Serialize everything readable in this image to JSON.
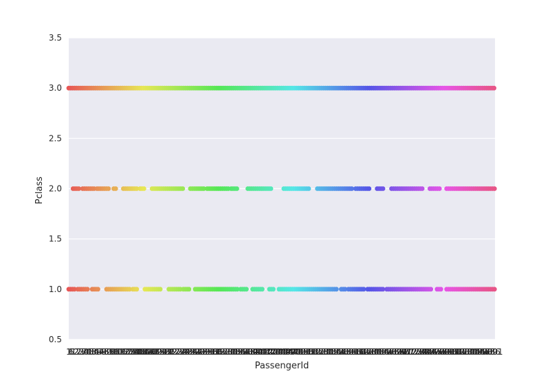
{
  "chart_data": {
    "type": "scatter",
    "title": "",
    "xlabel": "PassengerId",
    "ylabel": "Pclass",
    "ylim": [
      0.5,
      3.5
    ],
    "xlim": [
      1,
      891
    ],
    "yticks": [
      "0.5",
      "1.0",
      "1.5",
      "2.0",
      "2.5",
      "3.0",
      "3.5"
    ],
    "grid": true,
    "background": "#EAEAF2",
    "x_tick_labels_note": "overlapping PassengerId labels 1..891",
    "series": [
      {
        "name": "",
        "y": 3.0,
        "x_ranges": [
          [
            1,
            891
          ]
        ]
      },
      {
        "name": "",
        "y": 2.0,
        "x_ranges": [
          [
            10,
            25
          ],
          [
            30,
            55
          ],
          [
            60,
            85
          ],
          [
            95,
            100
          ],
          [
            115,
            145
          ],
          [
            150,
            160
          ],
          [
            175,
            240
          ],
          [
            255,
            285
          ],
          [
            290,
            335
          ],
          [
            340,
            355
          ],
          [
            375,
            425
          ],
          [
            450,
            505
          ],
          [
            520,
            595
          ],
          [
            600,
            630
          ],
          [
            645,
            660
          ],
          [
            675,
            740
          ],
          [
            755,
            776
          ],
          [
            790,
            891
          ]
        ]
      },
      {
        "name": "",
        "y": 1.0,
        "x_ranges": [
          [
            1,
            15
          ],
          [
            20,
            40
          ],
          [
            50,
            65
          ],
          [
            80,
            130
          ],
          [
            135,
            145
          ],
          [
            160,
            195
          ],
          [
            210,
            235
          ],
          [
            240,
            255
          ],
          [
            265,
            355
          ],
          [
            360,
            375
          ],
          [
            385,
            405
          ],
          [
            420,
            430
          ],
          [
            440,
            560
          ],
          [
            570,
            580
          ],
          [
            585,
            620
          ],
          [
            625,
            660
          ],
          [
            665,
            760
          ],
          [
            770,
            780
          ],
          [
            790,
            891
          ]
        ]
      }
    ]
  }
}
